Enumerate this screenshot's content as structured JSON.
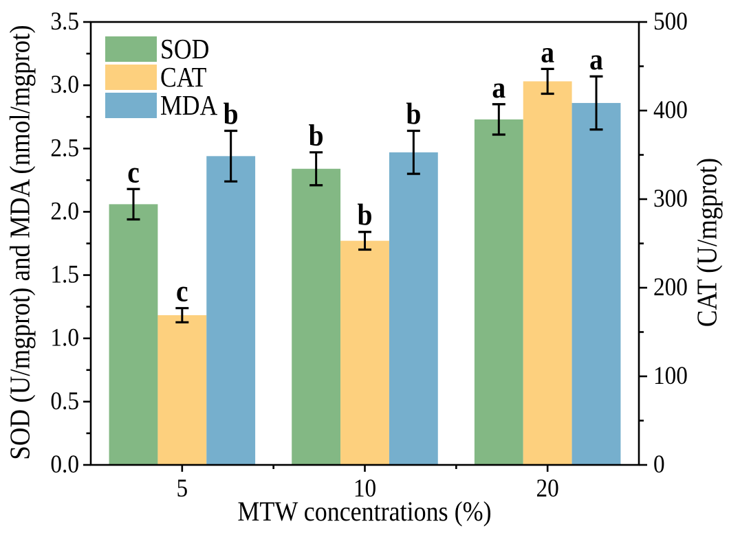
{
  "figure": {
    "xlabel": "MTW concentrations (%)",
    "ylabel_left": "SOD (U/mgprot) and MDA (nmol/mgprot)",
    "ylabel_right": "CAT (U/mgprot)",
    "background_color": "#ffffff",
    "axis_color": "#000000"
  },
  "legend": {
    "items": [
      {
        "label": "SOD",
        "color": "#83b884"
      },
      {
        "label": "CAT",
        "color": "#fdd07e"
      },
      {
        "label": "MDA",
        "color": "#76afcd"
      }
    ]
  },
  "chart_data": {
    "type": "bar",
    "title": "",
    "xlabel": "MTW concentrations (%)",
    "ylabel_left": "SOD (U/mgprot) and MDA (nmol/mgprot)",
    "ylabel_right": "CAT (U/mgprot)",
    "categories": [
      "5",
      "10",
      "20"
    ],
    "left_axis": {
      "min": 0,
      "max": 3.5,
      "major_step": 0.5,
      "minor_step": 0.25
    },
    "right_axis": {
      "min": 0,
      "max": 500,
      "major_step": 100,
      "minor_step": 50
    },
    "grid": false,
    "legend_position": "upper left",
    "series": [
      {
        "name": "SOD",
        "axis": "left",
        "color": "#83b884",
        "values": [
          2.06,
          2.34,
          2.73
        ],
        "errors": [
          0.12,
          0.13,
          0.12
        ],
        "letters": [
          "c",
          "b",
          "a"
        ]
      },
      {
        "name": "CAT",
        "axis": "right",
        "color": "#fdd07e",
        "values": [
          169,
          253,
          433
        ],
        "errors": [
          8,
          10,
          14
        ],
        "letters": [
          "c",
          "b",
          "a"
        ]
      },
      {
        "name": "MDA",
        "axis": "left",
        "color": "#76afcd",
        "values": [
          2.44,
          2.47,
          2.86
        ],
        "errors": [
          0.2,
          0.17,
          0.21
        ],
        "letters": [
          "b",
          "b",
          "a"
        ]
      }
    ]
  }
}
